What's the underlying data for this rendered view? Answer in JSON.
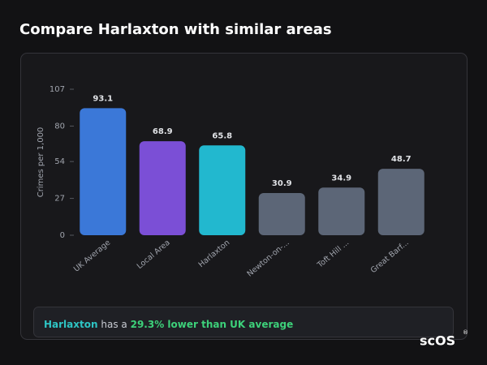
{
  "header": {
    "title": "Compare Harlaxton with similar areas"
  },
  "chart_data": {
    "type": "bar",
    "y_label": "Crimes per 1,000",
    "categories": [
      "UK Average",
      "Local Area",
      "Harlaxton",
      "Newton-on-...",
      "Toft Hill ...",
      "Great Barf..."
    ],
    "values": [
      93.1,
      68.9,
      65.8,
      30.9,
      34.9,
      48.7
    ],
    "colors": [
      "#3b78d8",
      "#7b4fd6",
      "#22b8cf",
      "#5c6677",
      "#5c6677",
      "#5c6677"
    ],
    "ylim": [
      0,
      107
    ],
    "yticks": [
      0,
      27,
      54,
      80,
      107
    ]
  },
  "summary": {
    "area": "Harlaxton",
    "connector": "has a",
    "highlight": "29.3% lower than UK average"
  },
  "logo": {
    "text": "scOS",
    "mark": "®"
  }
}
